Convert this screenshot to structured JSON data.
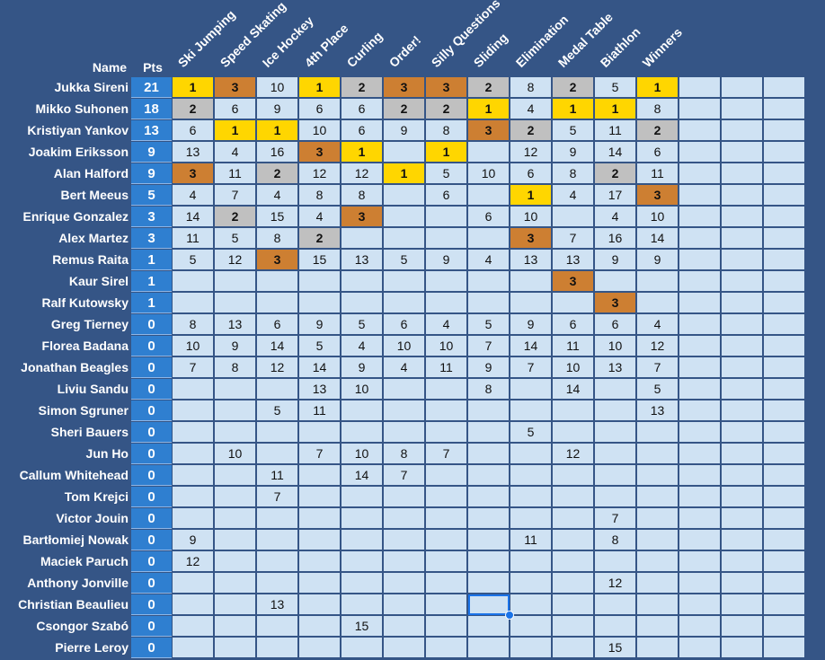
{
  "headers": {
    "name": "Name",
    "pts": "Pts"
  },
  "events": [
    "Ski Jumping",
    "Speed Skating",
    "Ice Hockey",
    "4th Place",
    "Curling",
    "Order!",
    "Silly Questions",
    "Sliding",
    "Elimination",
    "Medal Table",
    "Biathlon",
    "Winners",
    "",
    "",
    ""
  ],
  "colors": {
    "gold": "#ffd600",
    "silver": "#c0c0c0",
    "bronze": "#cd7f32",
    "cell": "#cfe2f3",
    "pts": "#2f7fd0",
    "background": "#355586"
  },
  "selected_cell": {
    "row": 24,
    "col": 7
  },
  "rows": [
    {
      "name": "Jukka Sireni",
      "pts": "21",
      "cells": [
        "1",
        "3",
        "10",
        "1",
        "2",
        "3",
        "3",
        "2",
        "8",
        "2",
        "5",
        "1",
        "",
        "",
        ""
      ]
    },
    {
      "name": "Mikko Suhonen",
      "pts": "18",
      "cells": [
        "2",
        "6",
        "9",
        "6",
        "6",
        "2",
        "2",
        "1",
        "4",
        "1",
        "1",
        "8",
        "",
        "",
        ""
      ]
    },
    {
      "name": "Kristiyan Yankov",
      "pts": "13",
      "cells": [
        "6",
        "1",
        "1",
        "10",
        "6",
        "9",
        "8",
        "3",
        "2",
        "5",
        "11",
        "2",
        "",
        "",
        ""
      ]
    },
    {
      "name": "Joakim Eriksson",
      "pts": "9",
      "cells": [
        "13",
        "4",
        "16",
        "3",
        "1",
        "",
        "1",
        "",
        "12",
        "9",
        "14",
        "6",
        "",
        "",
        ""
      ]
    },
    {
      "name": "Alan Halford",
      "pts": "9",
      "cells": [
        "3",
        "11",
        "2",
        "12",
        "12",
        "1",
        "5",
        "10",
        "6",
        "8",
        "2",
        "11",
        "",
        "",
        ""
      ]
    },
    {
      "name": "Bert Meeus",
      "pts": "5",
      "cells": [
        "4",
        "7",
        "4",
        "8",
        "8",
        "",
        "6",
        "",
        "1",
        "4",
        "17",
        "3",
        "",
        "",
        ""
      ]
    },
    {
      "name": "Enrique Gonzalez",
      "pts": "3",
      "cells": [
        "14",
        "2",
        "15",
        "4",
        "3",
        "",
        "",
        "6",
        "10",
        "",
        "4",
        "10",
        "",
        "",
        ""
      ]
    },
    {
      "name": "Alex Martez",
      "pts": "3",
      "cells": [
        "11",
        "5",
        "8",
        "2",
        "",
        "",
        "",
        "",
        "3",
        "7",
        "16",
        "14",
        "",
        "",
        ""
      ]
    },
    {
      "name": "Remus Raita",
      "pts": "1",
      "cells": [
        "5",
        "12",
        "3",
        "15",
        "13",
        "5",
        "9",
        "4",
        "13",
        "13",
        "9",
        "9",
        "",
        "",
        ""
      ]
    },
    {
      "name": "Kaur Sirel",
      "pts": "1",
      "cells": [
        "",
        "",
        "",
        "",
        "",
        "",
        "",
        "",
        "",
        "3",
        "",
        "",
        "",
        "",
        ""
      ]
    },
    {
      "name": "Ralf Kutowsky",
      "pts": "1",
      "cells": [
        "",
        "",
        "",
        "",
        "",
        "",
        "",
        "",
        "",
        "",
        "3",
        "",
        "",
        "",
        ""
      ]
    },
    {
      "name": "Greg Tierney",
      "pts": "0",
      "cells": [
        "8",
        "13",
        "6",
        "9",
        "5",
        "6",
        "4",
        "5",
        "9",
        "6",
        "6",
        "4",
        "",
        "",
        ""
      ]
    },
    {
      "name": "Florea Badana",
      "pts": "0",
      "cells": [
        "10",
        "9",
        "14",
        "5",
        "4",
        "10",
        "10",
        "7",
        "14",
        "11",
        "10",
        "12",
        "",
        "",
        ""
      ]
    },
    {
      "name": "Jonathan Beagles",
      "pts": "0",
      "cells": [
        "7",
        "8",
        "12",
        "14",
        "9",
        "4",
        "11",
        "9",
        "7",
        "10",
        "13",
        "7",
        "",
        "",
        ""
      ]
    },
    {
      "name": "Liviu Sandu",
      "pts": "0",
      "cells": [
        "",
        "",
        "",
        "13",
        "10",
        "",
        "",
        "8",
        "",
        "14",
        "",
        "5",
        "",
        "",
        ""
      ]
    },
    {
      "name": "Simon Sgruner",
      "pts": "0",
      "cells": [
        "",
        "",
        "5",
        "11",
        "",
        "",
        "",
        "",
        "",
        "",
        "",
        "13",
        "",
        "",
        ""
      ]
    },
    {
      "name": "Sheri Bauers",
      "pts": "0",
      "cells": [
        "",
        "",
        "",
        "",
        "",
        "",
        "",
        "",
        "5",
        "",
        "",
        "",
        "",
        "",
        ""
      ]
    },
    {
      "name": "Jun Ho",
      "pts": "0",
      "cells": [
        "",
        "10",
        "",
        "7",
        "10",
        "8",
        "7",
        "",
        "",
        "12",
        "",
        "",
        "",
        "",
        ""
      ]
    },
    {
      "name": "Callum Whitehead",
      "pts": "0",
      "cells": [
        "",
        "",
        "11",
        "",
        "14",
        "7",
        "",
        "",
        "",
        "",
        "",
        "",
        "",
        "",
        ""
      ]
    },
    {
      "name": "Tom Krejci",
      "pts": "0",
      "cells": [
        "",
        "",
        "7",
        "",
        "",
        "",
        "",
        "",
        "",
        "",
        "",
        "",
        "",
        "",
        ""
      ]
    },
    {
      "name": "Victor Jouin",
      "pts": "0",
      "cells": [
        "",
        "",
        "",
        "",
        "",
        "",
        "",
        "",
        "",
        "",
        "7",
        "",
        "",
        "",
        ""
      ]
    },
    {
      "name": "Bartłomiej Nowak",
      "pts": "0",
      "cells": [
        "9",
        "",
        "",
        "",
        "",
        "",
        "",
        "",
        "11",
        "",
        "8",
        "",
        "",
        "",
        ""
      ]
    },
    {
      "name": "Maciek Paruch",
      "pts": "0",
      "cells": [
        "12",
        "",
        "",
        "",
        "",
        "",
        "",
        "",
        "",
        "",
        "",
        "",
        "",
        "",
        ""
      ]
    },
    {
      "name": "Anthony Jonville",
      "pts": "0",
      "cells": [
        "",
        "",
        "",
        "",
        "",
        "",
        "",
        "",
        "",
        "",
        "12",
        "",
        "",
        "",
        ""
      ]
    },
    {
      "name": "Christian Beaulieu",
      "pts": "0",
      "cells": [
        "",
        "",
        "13",
        "",
        "",
        "",
        "",
        "",
        "",
        "",
        "",
        "",
        "",
        "",
        ""
      ]
    },
    {
      "name": "Csongor Szabó",
      "pts": "0",
      "cells": [
        "",
        "",
        "",
        "",
        "15",
        "",
        "",
        "",
        "",
        "",
        "",
        "",
        "",
        "",
        ""
      ]
    },
    {
      "name": "Pierre Leroy",
      "pts": "0",
      "cells": [
        "",
        "",
        "",
        "",
        "",
        "",
        "",
        "",
        "",
        "",
        "15",
        "",
        "",
        "",
        ""
      ]
    }
  ]
}
